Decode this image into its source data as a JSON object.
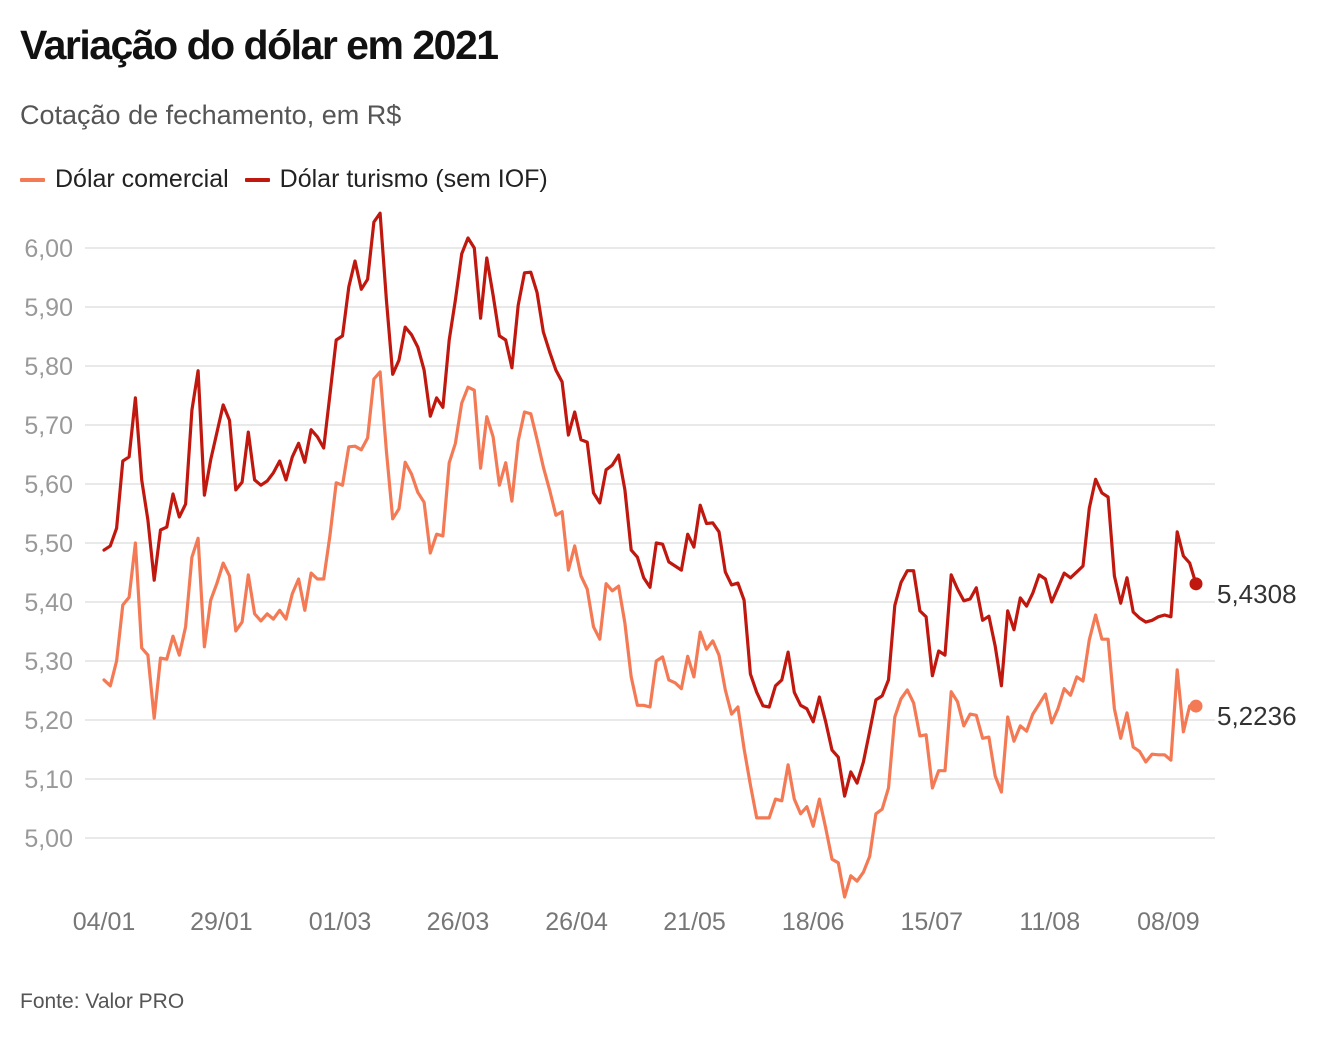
{
  "header": {
    "title": "Variação do dólar em 2021",
    "subtitle": "Cotação de fechamento, em R$"
  },
  "legend": [
    {
      "label": "Dólar comercial",
      "color": "#f47a55"
    },
    {
      "label": "Dólar turismo (sem IOF)",
      "color": "#c0180f"
    }
  ],
  "source": "Fonte: Valor PRO",
  "chart_data": {
    "type": "line",
    "title": "Variação do dólar em 2021",
    "subtitle": "Cotação de fechamento, em R$",
    "xlabel": "",
    "ylabel": "",
    "ylim": [
      4.9,
      6.06
    ],
    "yticks": [
      5.0,
      5.1,
      5.2,
      5.3,
      5.4,
      5.5,
      5.6,
      5.7,
      5.8,
      5.9,
      6.0
    ],
    "ytick_labels": [
      "5,00",
      "5,10",
      "5,20",
      "5,30",
      "5,40",
      "5,50",
      "5,60",
      "5,70",
      "5,80",
      "5,90",
      "6,00"
    ],
    "xtick_labels": [
      "04/01",
      "29/01",
      "01/03",
      "26/03",
      "26/04",
      "21/05",
      "18/06",
      "15/07",
      "11/08",
      "08/09"
    ],
    "xtick_index": [
      0,
      18.7,
      37.6,
      56.4,
      75.3,
      94.1,
      113,
      131.9,
      150.7,
      169.6
    ],
    "grid": true,
    "legend_position": "top-left",
    "series": [
      {
        "name": "Dólar comercial",
        "color": "#f47a55",
        "end_label": "5,2236",
        "values": [
          5.268,
          5.258,
          5.3,
          5.395,
          5.408,
          5.5,
          5.322,
          5.31,
          5.203,
          5.305,
          5.303,
          5.342,
          5.31,
          5.358,
          5.476,
          5.508,
          5.324,
          5.403,
          5.432,
          5.466,
          5.444,
          5.351,
          5.366,
          5.446,
          5.38,
          5.368,
          5.38,
          5.371,
          5.386,
          5.371,
          5.414,
          5.439,
          5.386,
          5.449,
          5.439,
          5.439,
          5.512,
          5.602,
          5.598,
          5.663,
          5.664,
          5.658,
          5.678,
          5.778,
          5.79,
          5.656,
          5.541,
          5.558,
          5.637,
          5.617,
          5.586,
          5.569,
          5.483,
          5.515,
          5.512,
          5.636,
          5.669,
          5.737,
          5.764,
          5.759,
          5.627,
          5.714,
          5.68,
          5.598,
          5.636,
          5.571,
          5.673,
          5.722,
          5.719,
          5.676,
          5.629,
          5.59,
          5.547,
          5.553,
          5.454,
          5.495,
          5.444,
          5.422,
          5.358,
          5.337,
          5.431,
          5.419,
          5.427,
          5.364,
          5.273,
          5.225,
          5.225,
          5.222,
          5.3,
          5.307,
          5.268,
          5.263,
          5.253,
          5.308,
          5.273,
          5.349,
          5.32,
          5.334,
          5.31,
          5.251,
          5.21,
          5.222,
          5.151,
          5.09,
          5.034,
          5.034,
          5.034,
          5.066,
          5.063,
          5.124,
          5.066,
          5.041,
          5.053,
          5.02,
          5.066,
          5.017,
          4.964,
          4.958,
          4.9,
          4.936,
          4.927,
          4.942,
          4.969,
          5.041,
          5.049,
          5.085,
          5.205,
          5.236,
          5.251,
          5.229,
          5.173,
          5.175,
          5.085,
          5.114,
          5.114,
          5.248,
          5.231,
          5.19,
          5.21,
          5.208,
          5.169,
          5.171,
          5.105,
          5.078,
          5.205,
          5.164,
          5.19,
          5.181,
          5.21,
          5.227,
          5.244,
          5.195,
          5.219,
          5.253,
          5.242,
          5.273,
          5.266,
          5.336,
          5.378,
          5.337,
          5.337,
          5.219,
          5.169,
          5.212,
          5.154,
          5.147,
          5.129,
          5.142,
          5.141,
          5.141,
          5.132,
          5.285,
          5.18,
          5.224,
          5.2236
        ]
      },
      {
        "name": "Dólar turismo (sem IOF)",
        "color": "#c0180f",
        "end_label": "5,4308",
        "values": [
          5.488,
          5.495,
          5.525,
          5.639,
          5.646,
          5.746,
          5.607,
          5.539,
          5.437,
          5.522,
          5.527,
          5.583,
          5.544,
          5.566,
          5.725,
          5.792,
          5.581,
          5.641,
          5.688,
          5.734,
          5.708,
          5.59,
          5.603,
          5.688,
          5.607,
          5.598,
          5.605,
          5.619,
          5.639,
          5.607,
          5.646,
          5.669,
          5.637,
          5.692,
          5.68,
          5.661,
          5.751,
          5.844,
          5.851,
          5.934,
          5.978,
          5.93,
          5.947,
          6.044,
          6.059,
          5.912,
          5.786,
          5.81,
          5.866,
          5.853,
          5.832,
          5.793,
          5.715,
          5.746,
          5.73,
          5.844,
          5.912,
          5.99,
          6.017,
          6.0,
          5.881,
          5.983,
          5.92,
          5.851,
          5.844,
          5.797,
          5.903,
          5.958,
          5.959,
          5.925,
          5.858,
          5.824,
          5.793,
          5.773,
          5.683,
          5.722,
          5.675,
          5.671,
          5.585,
          5.568,
          5.624,
          5.632,
          5.649,
          5.59,
          5.488,
          5.476,
          5.441,
          5.425,
          5.5,
          5.498,
          5.468,
          5.461,
          5.454,
          5.515,
          5.493,
          5.564,
          5.533,
          5.534,
          5.519,
          5.451,
          5.429,
          5.432,
          5.403,
          5.278,
          5.247,
          5.224,
          5.222,
          5.258,
          5.268,
          5.315,
          5.247,
          5.225,
          5.219,
          5.197,
          5.239,
          5.197,
          5.149,
          5.137,
          5.071,
          5.112,
          5.093,
          5.129,
          5.181,
          5.234,
          5.241,
          5.268,
          5.394,
          5.433,
          5.453,
          5.453,
          5.385,
          5.375,
          5.275,
          5.317,
          5.31,
          5.446,
          5.422,
          5.402,
          5.405,
          5.424,
          5.369,
          5.376,
          5.325,
          5.258,
          5.385,
          5.353,
          5.407,
          5.393,
          5.415,
          5.446,
          5.439,
          5.4,
          5.424,
          5.449,
          5.441,
          5.451,
          5.461,
          5.559,
          5.608,
          5.585,
          5.578,
          5.444,
          5.398,
          5.441,
          5.383,
          5.373,
          5.366,
          5.369,
          5.375,
          5.378,
          5.375,
          5.519,
          5.478,
          5.466,
          5.4308
        ]
      }
    ]
  }
}
